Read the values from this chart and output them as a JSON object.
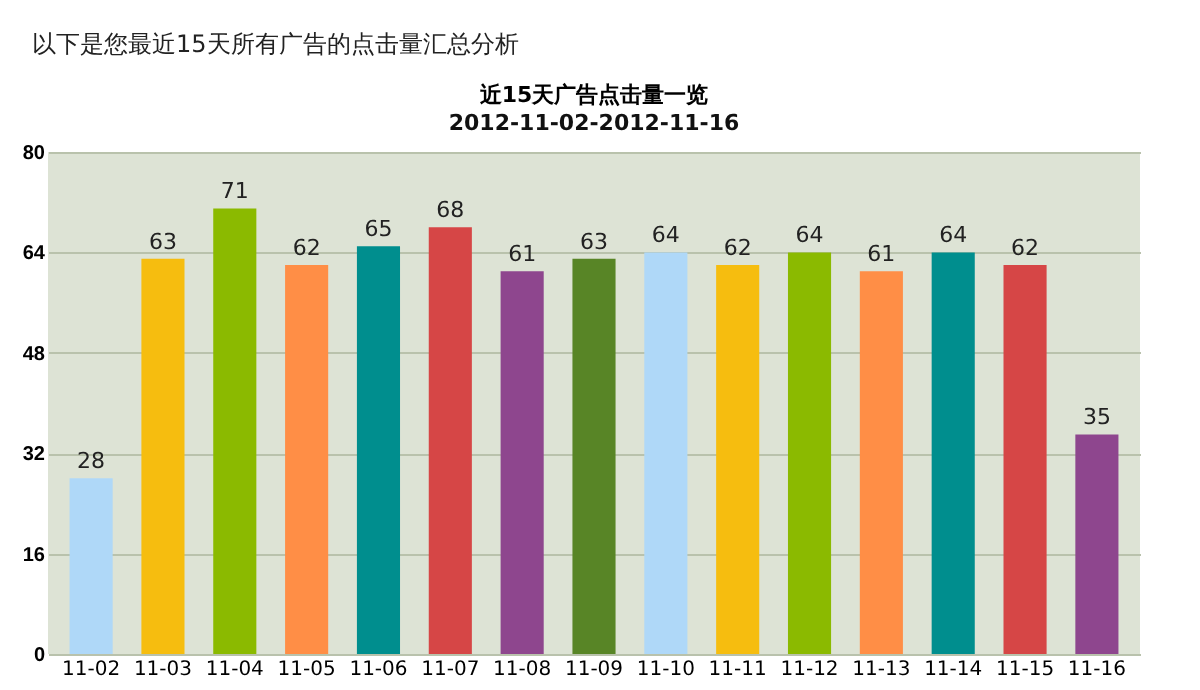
{
  "chart_data": {
    "type": "bar",
    "title": "近15天广告点击量一览",
    "subtitle": "2012-11-02-2012-11-16",
    "annotations": [
      "以下是您最近15天所有广告的点击量汇总分析"
    ],
    "categories": [
      "11-02",
      "11-03",
      "11-04",
      "11-05",
      "11-06",
      "11-07",
      "11-08",
      "11-09",
      "11-10",
      "11-11",
      "11-12",
      "11-13",
      "11-14",
      "11-15",
      "11-16"
    ],
    "values": [
      28,
      63,
      71,
      62,
      65,
      68,
      61,
      63,
      64,
      62,
      64,
      61,
      64,
      62,
      35
    ],
    "colors": [
      "#afd8f8",
      "#f6bd0f",
      "#8bba00",
      "#ff8e46",
      "#008e8e",
      "#d64646",
      "#8e468e",
      "#588526",
      "#afd8f8",
      "#f6bd0f",
      "#8bba00",
      "#ff8e46",
      "#008e8e",
      "#d64646",
      "#8e468e"
    ],
    "ylim": [
      0,
      80
    ],
    "yticks": [
      0,
      16,
      32,
      48,
      64,
      80
    ],
    "grid": "y",
    "data_labels": true
  }
}
